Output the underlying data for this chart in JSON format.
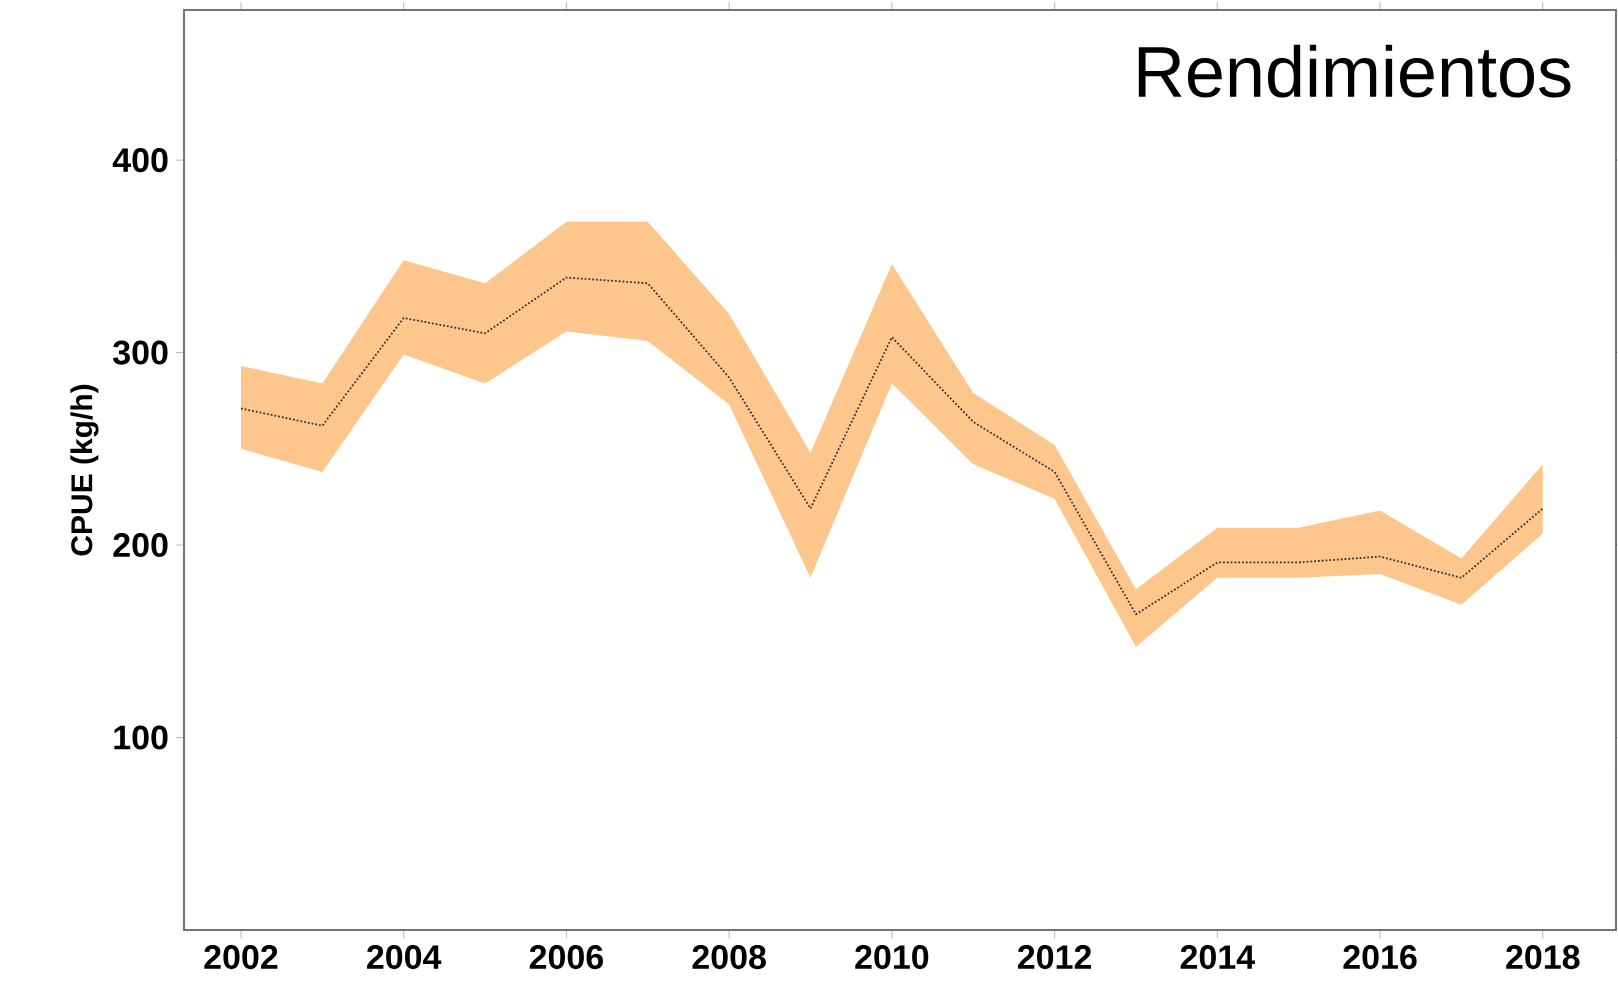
{
  "chart_data": {
    "type": "line",
    "title": "Rendimientos",
    "ylabel": "CPUE (kg/h)",
    "x": [
      2002,
      2003,
      2004,
      2005,
      2006,
      2007,
      2008,
      2009,
      2010,
      2011,
      2012,
      2013,
      2014,
      2015,
      2016,
      2017,
      2018
    ],
    "series": [
      {
        "color": "#333333",
        "line_style": "dotted",
        "values": [
          271,
          262,
          318,
          310,
          339,
          336,
          287,
          219,
          308,
          264,
          238,
          164,
          191,
          191,
          194,
          183,
          219
        ],
        "lower": [
          250,
          238,
          299,
          284,
          311,
          306,
          273,
          183,
          284,
          242,
          224,
          147,
          183,
          183,
          185,
          169,
          206
        ],
        "upper": [
          293,
          284,
          348,
          336,
          368,
          368,
          320,
          248,
          346,
          279,
          252,
          177,
          209,
          209,
          218,
          193,
          242
        ]
      }
    ],
    "xlim": [
      2001.3,
      2018.9
    ],
    "ylim": [
      0,
      478
    ],
    "xticks": [
      2002,
      2004,
      2006,
      2008,
      2010,
      2012,
      2014,
      2016,
      2018
    ],
    "yticks": [
      100,
      200,
      300,
      400
    ],
    "grid": false,
    "marker": "none"
  }
}
